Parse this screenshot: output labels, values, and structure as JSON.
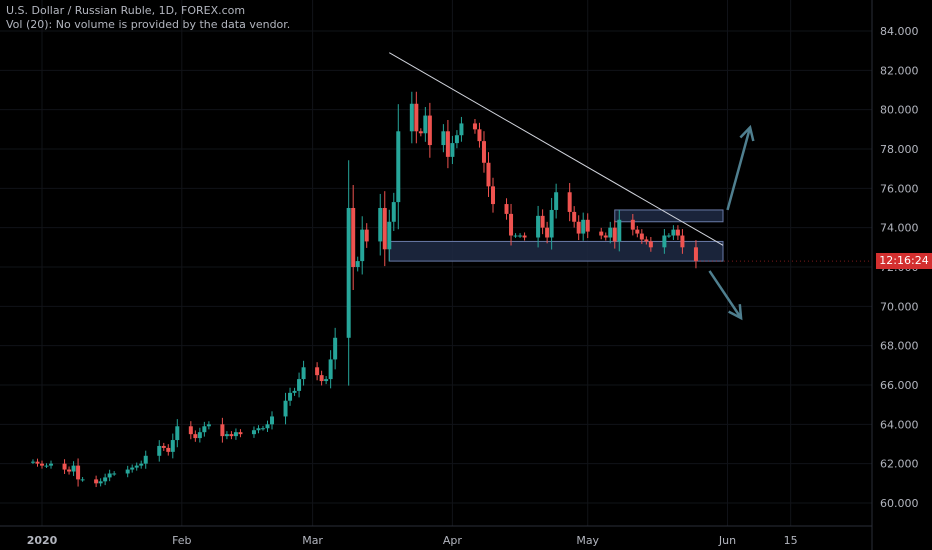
{
  "header": {
    "title": "U.S. Dollar / Russian Ruble, 1D, FOREX.com",
    "volume_note": "Vol (20): No volume is provided by the data vendor."
  },
  "price_label": "12:16:24",
  "colors": {
    "up": "#26a69a",
    "down": "#ef5350",
    "grid": "#111318",
    "axis_text": "#b2b5be",
    "trendline": "#d1d4dc",
    "arrow": "#4f7f8f",
    "zone_fill": "#1e2a44",
    "zone_stroke": "#6a7ba8"
  },
  "chart_data": {
    "type": "candlestick",
    "title": "U.S. Dollar / Russian Ruble, 1D, FOREX.com",
    "ylim": [
      58.9,
      85.3
    ],
    "y_ticks": [
      "60.000",
      "62.000",
      "64.000",
      "66.000",
      "68.000",
      "70.000",
      "72.000",
      "74.000",
      "76.000",
      "78.000",
      "80.000",
      "82.000",
      "84.000"
    ],
    "x_ticks": [
      "2020",
      "Feb",
      "Mar",
      "Apr",
      "May",
      "Jun",
      "15"
    ],
    "tick_dates": [
      "2020-01-01",
      "2020-02-01",
      "2020-03-01",
      "2020-04-01",
      "2020-05-01",
      "2020-06-01",
      "2020-06-15"
    ],
    "grid": true,
    "closes": [
      [
        "2019-12-30",
        62.1
      ],
      [
        "2019-12-31",
        62.0
      ],
      [
        "2020-01-01",
        61.9
      ],
      [
        "2020-01-02",
        61.9
      ],
      [
        "2020-01-03",
        62.0
      ],
      [
        "2020-01-06",
        61.7
      ],
      [
        "2020-01-07",
        61.6
      ],
      [
        "2020-01-08",
        61.9
      ],
      [
        "2020-01-09",
        61.2
      ],
      [
        "2020-01-10",
        61.2
      ],
      [
        "2020-01-13",
        61.0
      ],
      [
        "2020-01-14",
        61.1
      ],
      [
        "2020-01-15",
        61.3
      ],
      [
        "2020-01-16",
        61.5
      ],
      [
        "2020-01-17",
        61.5
      ],
      [
        "2020-01-20",
        61.7
      ],
      [
        "2020-01-21",
        61.8
      ],
      [
        "2020-01-22",
        61.9
      ],
      [
        "2020-01-23",
        62.0
      ],
      [
        "2020-01-24",
        62.4
      ],
      [
        "2020-01-27",
        62.9
      ],
      [
        "2020-01-28",
        62.8
      ],
      [
        "2020-01-29",
        62.6
      ],
      [
        "2020-01-30",
        63.2
      ],
      [
        "2020-01-31",
        63.9
      ],
      [
        "2020-02-03",
        63.5
      ],
      [
        "2020-02-04",
        63.3
      ],
      [
        "2020-02-05",
        63.6
      ],
      [
        "2020-02-06",
        63.9
      ],
      [
        "2020-02-07",
        64.0
      ],
      [
        "2020-02-10",
        63.4
      ],
      [
        "2020-02-11",
        63.5
      ],
      [
        "2020-02-12",
        63.4
      ],
      [
        "2020-02-13",
        63.6
      ],
      [
        "2020-02-14",
        63.5
      ],
      [
        "2020-02-17",
        63.7
      ],
      [
        "2020-02-18",
        63.8
      ],
      [
        "2020-02-19",
        63.8
      ],
      [
        "2020-02-20",
        64.0
      ],
      [
        "2020-02-21",
        64.4
      ],
      [
        "2020-02-24",
        65.2
      ],
      [
        "2020-02-25",
        65.6
      ],
      [
        "2020-02-26",
        65.7
      ],
      [
        "2020-02-27",
        66.3
      ],
      [
        "2020-02-28",
        66.9
      ],
      [
        "2020-03-02",
        66.5
      ],
      [
        "2020-03-03",
        66.2
      ],
      [
        "2020-03-04",
        66.3
      ],
      [
        "2020-03-05",
        67.3
      ],
      [
        "2020-03-06",
        68.4
      ],
      [
        "2020-03-09",
        75.0
      ],
      [
        "2020-03-10",
        72.0
      ],
      [
        "2020-03-11",
        72.3
      ],
      [
        "2020-03-12",
        73.9
      ],
      [
        "2020-03-13",
        73.3
      ],
      [
        "2020-03-16",
        75.0
      ],
      [
        "2020-03-17",
        72.9
      ],
      [
        "2020-03-18",
        74.3
      ],
      [
        "2020-03-19",
        75.3
      ],
      [
        "2020-03-20",
        78.9
      ],
      [
        "2020-03-23",
        80.3
      ],
      [
        "2020-03-24",
        78.9
      ],
      [
        "2020-03-25",
        78.8
      ],
      [
        "2020-03-26",
        79.7
      ],
      [
        "2020-03-27",
        78.2
      ],
      [
        "2020-03-30",
        78.9
      ],
      [
        "2020-03-31",
        77.6
      ],
      [
        "2020-04-01",
        78.3
      ],
      [
        "2020-04-02",
        78.7
      ],
      [
        "2020-04-03",
        79.3
      ],
      [
        "2020-04-06",
        79.0
      ],
      [
        "2020-04-07",
        78.4
      ],
      [
        "2020-04-08",
        77.3
      ],
      [
        "2020-04-09",
        76.1
      ],
      [
        "2020-04-10",
        75.2
      ],
      [
        "2020-04-13",
        74.7
      ],
      [
        "2020-04-14",
        73.6
      ],
      [
        "2020-04-15",
        73.6
      ],
      [
        "2020-04-16",
        73.6
      ],
      [
        "2020-04-17",
        73.5
      ],
      [
        "2020-04-20",
        74.6
      ],
      [
        "2020-04-21",
        74.0
      ],
      [
        "2020-04-22",
        73.5
      ],
      [
        "2020-04-23",
        74.9
      ],
      [
        "2020-04-24",
        75.8
      ],
      [
        "2020-04-27",
        74.8
      ],
      [
        "2020-04-28",
        74.3
      ],
      [
        "2020-04-29",
        73.7
      ],
      [
        "2020-04-30",
        74.4
      ],
      [
        "2020-05-01",
        73.8
      ],
      [
        "2020-05-04",
        73.6
      ],
      [
        "2020-05-05",
        73.5
      ],
      [
        "2020-05-06",
        74.0
      ],
      [
        "2020-05-07",
        73.3
      ],
      [
        "2020-05-08",
        74.4
      ],
      [
        "2020-05-11",
        73.9
      ],
      [
        "2020-05-12",
        73.7
      ],
      [
        "2020-05-13",
        73.4
      ],
      [
        "2020-05-14",
        73.3
      ],
      [
        "2020-05-15",
        73.0
      ],
      [
        "2020-05-18",
        73.6
      ],
      [
        "2020-05-19",
        73.6
      ],
      [
        "2020-05-20",
        73.9
      ],
      [
        "2020-05-21",
        73.6
      ],
      [
        "2020-05-22",
        73.0
      ],
      [
        "2020-05-25",
        72.3
      ]
    ],
    "trendline": [
      [
        "2020-03-18",
        82.9
      ],
      [
        "2020-05-31",
        73.1
      ]
    ],
    "zones": [
      {
        "from": "2020-03-18",
        "to": "2020-05-31",
        "low": 72.3,
        "high": 73.3
      },
      {
        "from": "2020-05-07",
        "to": "2020-05-31",
        "low": 74.3,
        "high": 74.9
      }
    ],
    "arrows": [
      {
        "from": [
          "2020-06-01",
          74.9
        ],
        "to": [
          "2020-06-06",
          79.1
        ]
      },
      {
        "from": [
          "2020-05-28",
          71.8
        ],
        "to": [
          "2020-06-04",
          69.4
        ]
      }
    ],
    "last_price_marker": 72.3
  }
}
